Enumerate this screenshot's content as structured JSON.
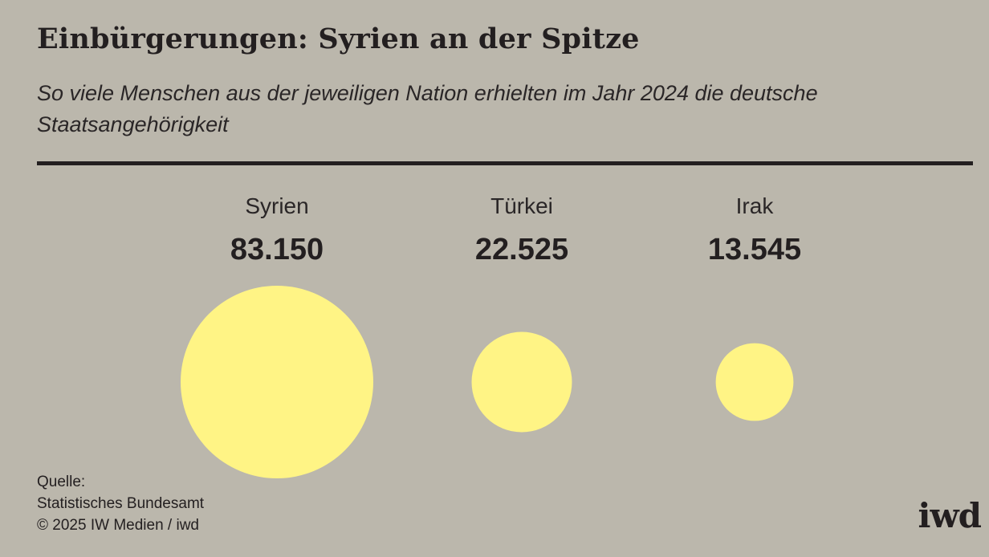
{
  "chart_data": {
    "type": "bubble",
    "title": "Einbürgerungen: Syrien an der Spitze",
    "subtitle": "So viele Menschen aus der jeweiligen Nation erhielten im Jahr 2024 die deutsche Staatsangehörigkeit",
    "categories": [
      "Syrien",
      "Türkei",
      "Irak"
    ],
    "values": [
      83150,
      22525,
      13545
    ],
    "value_labels": [
      "83.150",
      "22.525",
      "13.545"
    ],
    "bubble_color": "#fff485",
    "grid": false,
    "legend": "none"
  },
  "source": {
    "label": "Quelle:",
    "name": "Statistisches Bundesamt",
    "copyright": "© 2025 IW Medien / iwd"
  },
  "logo": {
    "text": "iwd"
  },
  "colors": {
    "background": "#bbb7ac",
    "text": "#231f20",
    "bubble": "#fff485"
  }
}
